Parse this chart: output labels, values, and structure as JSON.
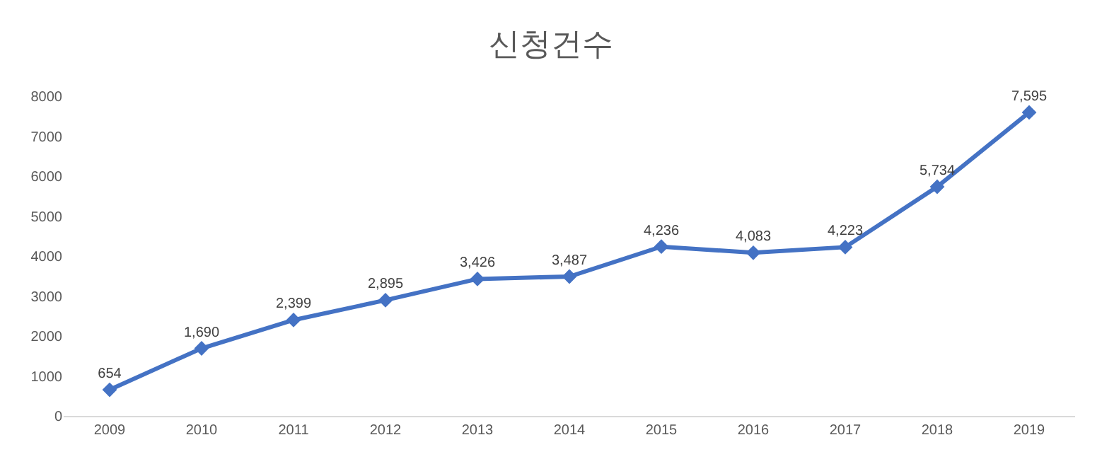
{
  "chart_data": {
    "type": "line",
    "title": "신청건수",
    "categories": [
      "2009",
      "2010",
      "2011",
      "2012",
      "2013",
      "2014",
      "2015",
      "2016",
      "2017",
      "2018",
      "2019"
    ],
    "series": [
      {
        "color": "#4472c4",
        "values": [
          654,
          1690,
          2399,
          2895,
          3426,
          3487,
          4236,
          4083,
          4223,
          5734,
          7595
        ],
        "value_labels": [
          "654",
          "1,690",
          "2,399",
          "2,895",
          "3,426",
          "3,487",
          "4,236",
          "4,083",
          "4,223",
          "5,734",
          "7,595"
        ]
      }
    ],
    "ylim": [
      0,
      8000
    ],
    "yticks": [
      0,
      1000,
      2000,
      3000,
      4000,
      5000,
      6000,
      7000,
      8000
    ],
    "grid": false,
    "marker": "diamond",
    "line_style": "solid"
  }
}
